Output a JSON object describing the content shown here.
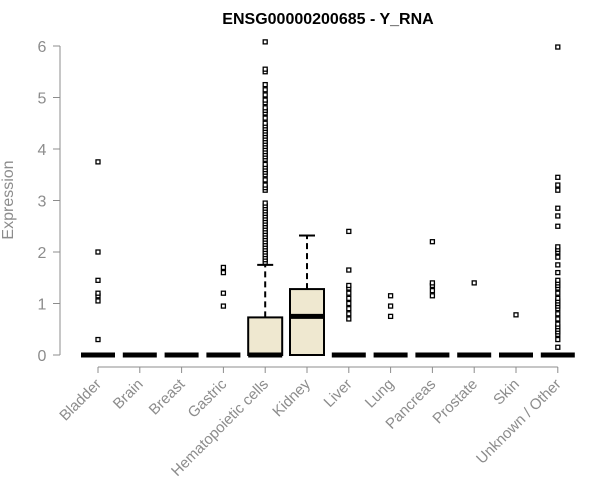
{
  "chart_data": {
    "type": "boxplot",
    "title": "ENSG00000200685 - Y_RNA",
    "xlabel": "",
    "ylabel": "Expression",
    "ylim": [
      0,
      6
    ],
    "yticks": [
      0,
      1,
      2,
      3,
      4,
      5,
      6
    ],
    "box_fill": "#efe8d0",
    "categories": [
      "Bladder",
      "Brain",
      "Breast",
      "Gastric",
      "Hematopoietic cells",
      "Kidney",
      "Liver",
      "Lung",
      "Pancreas",
      "Prostate",
      "Skin",
      "Unknown / Other"
    ],
    "boxes": [
      {
        "category": "Bladder",
        "q1": 0,
        "median": 0,
        "q3": 0,
        "whisker_low": 0,
        "whisker_high": 0,
        "outliers": [
          0.3,
          1.05,
          1.15,
          1.2,
          1.45,
          2.0,
          3.75
        ]
      },
      {
        "category": "Brain",
        "q1": 0,
        "median": 0,
        "q3": 0,
        "whisker_low": 0,
        "whisker_high": 0,
        "outliers": []
      },
      {
        "category": "Breast",
        "q1": 0,
        "median": 0,
        "q3": 0,
        "whisker_low": 0,
        "whisker_high": 0,
        "outliers": []
      },
      {
        "category": "Gastric",
        "q1": 0,
        "median": 0,
        "q3": 0,
        "whisker_low": 0,
        "whisker_high": 0,
        "outliers": [
          0.95,
          1.2,
          1.6,
          1.7
        ]
      },
      {
        "category": "Hematopoietic cells",
        "q1": 0,
        "median": 0,
        "q3": 0.73,
        "whisker_low": 0,
        "whisker_high": 1.75,
        "outliers": [
          1.8,
          1.85,
          1.9,
          1.95,
          2.0,
          2.05,
          2.1,
          2.15,
          2.2,
          2.25,
          2.3,
          2.35,
          2.4,
          2.45,
          2.5,
          2.55,
          2.6,
          2.65,
          2.7,
          2.75,
          2.8,
          2.85,
          2.9,
          2.95,
          3.2,
          3.25,
          3.3,
          3.4,
          3.5,
          3.55,
          3.6,
          3.65,
          3.7,
          3.8,
          3.85,
          3.9,
          3.95,
          4.0,
          4.05,
          4.1,
          4.15,
          4.2,
          4.25,
          4.3,
          4.35,
          4.4,
          4.45,
          4.5,
          4.6,
          4.7,
          4.75,
          4.8,
          4.9,
          4.95,
          5.05,
          5.15,
          5.25,
          5.5,
          5.55,
          6.08
        ]
      },
      {
        "category": "Kidney",
        "q1": 0,
        "median": 0.75,
        "q3": 1.28,
        "whisker_low": 0,
        "whisker_high": 2.32,
        "outliers": []
      },
      {
        "category": "Liver",
        "q1": 0,
        "median": 0,
        "q3": 0,
        "whisker_low": 0,
        "whisker_high": 0,
        "outliers": [
          0.7,
          0.8,
          0.9,
          1.0,
          1.1,
          1.2,
          1.3,
          1.35,
          1.65,
          2.4
        ]
      },
      {
        "category": "Lung",
        "q1": 0,
        "median": 0,
        "q3": 0,
        "whisker_low": 0,
        "whisker_high": 0,
        "outliers": [
          0.75,
          0.95,
          1.15
        ]
      },
      {
        "category": "Pancreas",
        "q1": 0,
        "median": 0,
        "q3": 0,
        "whisker_low": 0,
        "whisker_high": 0,
        "outliers": [
          1.15,
          1.25,
          1.35,
          1.4,
          2.2
        ]
      },
      {
        "category": "Prostate",
        "q1": 0,
        "median": 0,
        "q3": 0,
        "whisker_low": 0,
        "whisker_high": 0,
        "outliers": [
          1.4
        ]
      },
      {
        "category": "Skin",
        "q1": 0,
        "median": 0,
        "q3": 0,
        "whisker_low": 0,
        "whisker_high": 0,
        "outliers": [
          0.78
        ]
      },
      {
        "category": "Unknown / Other",
        "q1": 0,
        "median": 0,
        "q3": 0,
        "whisker_low": 0,
        "whisker_high": 0,
        "outliers": [
          0.15,
          0.3,
          0.4,
          0.45,
          0.5,
          0.55,
          0.6,
          0.7,
          0.8,
          0.9,
          0.95,
          1.0,
          1.05,
          1.1,
          1.2,
          1.3,
          1.35,
          1.4,
          1.45,
          1.6,
          1.75,
          1.9,
          2.0,
          2.05,
          2.1,
          2.5,
          2.7,
          2.85,
          3.2,
          3.3,
          3.45,
          5.98
        ]
      }
    ]
  }
}
